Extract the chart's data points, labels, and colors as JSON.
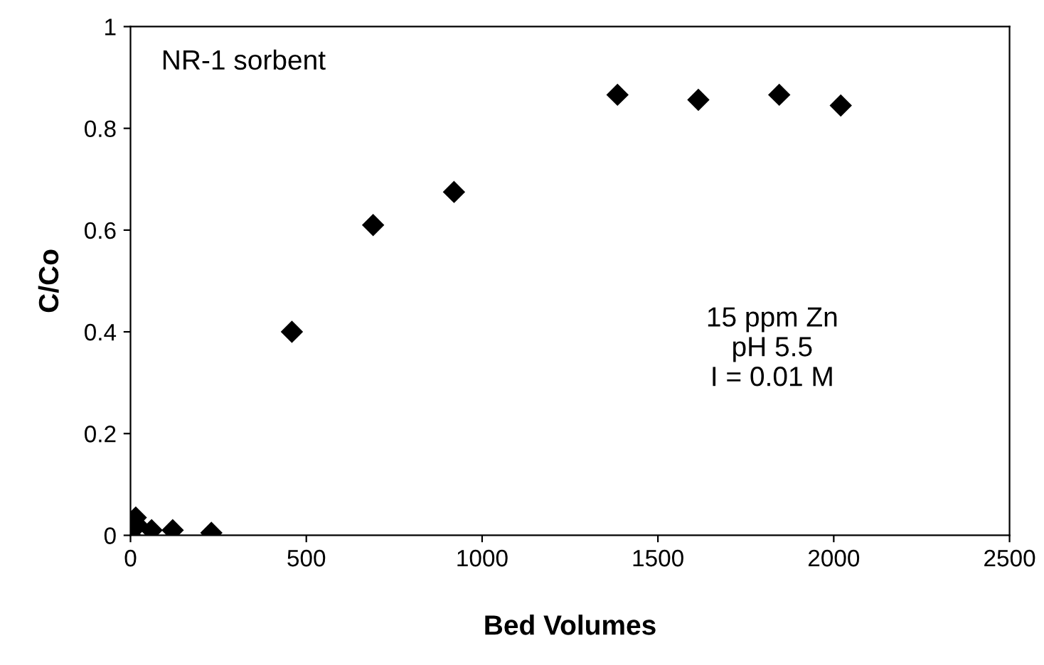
{
  "chart_data": {
    "type": "scatter",
    "xlabel": "Bed Volumes",
    "ylabel": "C/Co",
    "x": [
      0,
      15,
      20,
      60,
      120,
      230,
      459,
      690,
      920,
      1385,
      1615,
      1845,
      2020
    ],
    "series": [
      {
        "color": "#000000",
        "values": [
          0.0,
          0.035,
          0.02,
          0.01,
          0.01,
          0.005,
          0.4,
          0.61,
          0.675,
          0.866,
          0.856,
          0.866,
          0.845
        ]
      }
    ],
    "xlim": [
      0,
      2500
    ],
    "ylim": [
      0,
      1
    ],
    "xticks": [
      0,
      500,
      1000,
      1500,
      2000,
      2500
    ],
    "yticks": [
      0,
      0.2,
      0.4,
      0.6,
      0.8,
      1
    ],
    "marker": "diamond",
    "grid": false,
    "legend": false,
    "annotations": [
      "NR-1 sorbent",
      "15 ppm Zn\npH 5.5\nI = 0.01 M"
    ]
  }
}
